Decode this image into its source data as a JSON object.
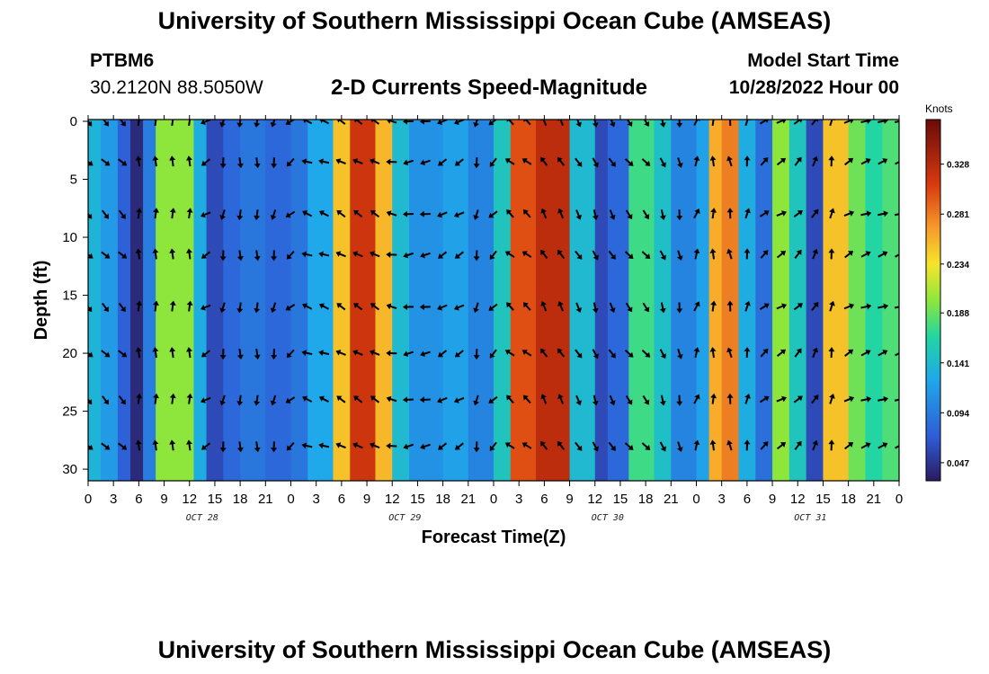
{
  "header": {
    "title": "University of Southern Mississippi Ocean Cube (AMSEAS)",
    "station": "PTBM6",
    "coords": "30.2120N  88.5050W",
    "subtitle": "2-D Currents Speed-Magnitude",
    "start_label": "Model Start Time",
    "start_time": "10/28/2022 Hour 00"
  },
  "footer": {
    "title": "University of Southern Mississippi Ocean Cube (AMSEAS)"
  },
  "chart_data": {
    "type": "heatmap",
    "title": "2-D Currents Speed-Magnitude",
    "xlabel": "Forecast Time(Z)",
    "ylabel": "Depth (ft)",
    "x_ticks": [
      "0",
      "3",
      "6",
      "9",
      "12",
      "15",
      "18",
      "21",
      "0",
      "3",
      "6",
      "9",
      "12",
      "15",
      "18",
      "21",
      "0",
      "3",
      "6",
      "9",
      "12",
      "15",
      "18",
      "21",
      "0",
      "3",
      "6",
      "9",
      "12",
      "15",
      "18",
      "21",
      "0"
    ],
    "day_labels": [
      "OCT 28",
      "OCT 29",
      "OCT 30",
      "OCT 31"
    ],
    "x_hours_range": [
      0,
      96
    ],
    "y_ticks": [
      "0",
      "5",
      "10",
      "15",
      "20",
      "25",
      "30"
    ],
    "ylim": [
      0,
      31
    ],
    "colorbar": {
      "unit": "Knots",
      "ticks": [
        "0.328",
        "0.281",
        "0.234",
        "0.188",
        "0.141",
        "0.094",
        "0.047"
      ],
      "range": [
        0.03,
        0.37
      ]
    },
    "arrow_depths_ft": [
      0,
      3.5,
      8,
      11.5,
      16,
      20,
      24,
      28
    ],
    "bands": [
      {
        "start_h": 0,
        "end_h": 1.5,
        "value": 0.135,
        "arrow_deg": -45
      },
      {
        "start_h": 1.5,
        "end_h": 3.5,
        "value": 0.115,
        "arrow_deg": -45
      },
      {
        "start_h": 3.5,
        "end_h": 5,
        "value": 0.075,
        "arrow_deg": -45
      },
      {
        "start_h": 5,
        "end_h": 6.5,
        "value": 0.04,
        "arrow_deg": 90
      },
      {
        "start_h": 6.5,
        "end_h": 8,
        "value": 0.095,
        "arrow_deg": 90
      },
      {
        "start_h": 8,
        "end_h": 10,
        "value": 0.2,
        "arrow_deg": 90
      },
      {
        "start_h": 10,
        "end_h": 12.5,
        "value": 0.2,
        "arrow_deg": 90
      },
      {
        "start_h": 12.5,
        "end_h": 14,
        "value": 0.13,
        "arrow_deg": -120
      },
      {
        "start_h": 14,
        "end_h": 16,
        "value": 0.06,
        "arrow_deg": -150
      },
      {
        "start_h": 16,
        "end_h": 18,
        "value": 0.08,
        "arrow_deg": -100
      },
      {
        "start_h": 18,
        "end_h": 21,
        "value": 0.09,
        "arrow_deg": -90
      },
      {
        "start_h": 21,
        "end_h": 24,
        "value": 0.08,
        "arrow_deg": -100
      },
      {
        "start_h": 24,
        "end_h": 26,
        "value": 0.09,
        "arrow_deg": -140
      },
      {
        "start_h": 26,
        "end_h": 29,
        "value": 0.125,
        "arrow_deg": 160
      },
      {
        "start_h": 29,
        "end_h": 31,
        "value": 0.25,
        "arrow_deg": 150
      },
      {
        "start_h": 31,
        "end_h": 34,
        "value": 0.315,
        "arrow_deg": 150
      },
      {
        "start_h": 34,
        "end_h": 36,
        "value": 0.255,
        "arrow_deg": 150
      },
      {
        "start_h": 36,
        "end_h": 38,
        "value": 0.14,
        "arrow_deg": 170
      },
      {
        "start_h": 38,
        "end_h": 42,
        "value": 0.11,
        "arrow_deg": -170
      },
      {
        "start_h": 42,
        "end_h": 45,
        "value": 0.12,
        "arrow_deg": -150
      },
      {
        "start_h": 45,
        "end_h": 48,
        "value": 0.1,
        "arrow_deg": -100
      },
      {
        "start_h": 48,
        "end_h": 50,
        "value": 0.15,
        "arrow_deg": -135
      },
      {
        "start_h": 50,
        "end_h": 53,
        "value": 0.3,
        "arrow_deg": 140
      },
      {
        "start_h": 53,
        "end_h": 57,
        "value": 0.325,
        "arrow_deg": 120
      },
      {
        "start_h": 57,
        "end_h": 60,
        "value": 0.14,
        "arrow_deg": -60
      },
      {
        "start_h": 60,
        "end_h": 61.5,
        "value": 0.06,
        "arrow_deg": -70
      },
      {
        "start_h": 61.5,
        "end_h": 64,
        "value": 0.08,
        "arrow_deg": -60
      },
      {
        "start_h": 64,
        "end_h": 67,
        "value": 0.175,
        "arrow_deg": -50
      },
      {
        "start_h": 67,
        "end_h": 69,
        "value": 0.145,
        "arrow_deg": -70
      },
      {
        "start_h": 69,
        "end_h": 72,
        "value": 0.1,
        "arrow_deg": -80
      },
      {
        "start_h": 72,
        "end_h": 73.5,
        "value": 0.12,
        "arrow_deg": 70
      },
      {
        "start_h": 73.5,
        "end_h": 75,
        "value": 0.26,
        "arrow_deg": 90
      },
      {
        "start_h": 75,
        "end_h": 77,
        "value": 0.28,
        "arrow_deg": 100
      },
      {
        "start_h": 77,
        "end_h": 79,
        "value": 0.13,
        "arrow_deg": 80
      },
      {
        "start_h": 79,
        "end_h": 81,
        "value": 0.085,
        "arrow_deg": 40
      },
      {
        "start_h": 81,
        "end_h": 83,
        "value": 0.2,
        "arrow_deg": 30
      },
      {
        "start_h": 83,
        "end_h": 85,
        "value": 0.15,
        "arrow_deg": 45
      },
      {
        "start_h": 85,
        "end_h": 87,
        "value": 0.06,
        "arrow_deg": 60
      },
      {
        "start_h": 87,
        "end_h": 90,
        "value": 0.25,
        "arrow_deg": 80
      },
      {
        "start_h": 90,
        "end_h": 92,
        "value": 0.19,
        "arrow_deg": 30
      },
      {
        "start_h": 92,
        "end_h": 94,
        "value": 0.165,
        "arrow_deg": 20
      },
      {
        "start_h": 94,
        "end_h": 96,
        "value": 0.18,
        "arrow_deg": 20
      }
    ]
  }
}
